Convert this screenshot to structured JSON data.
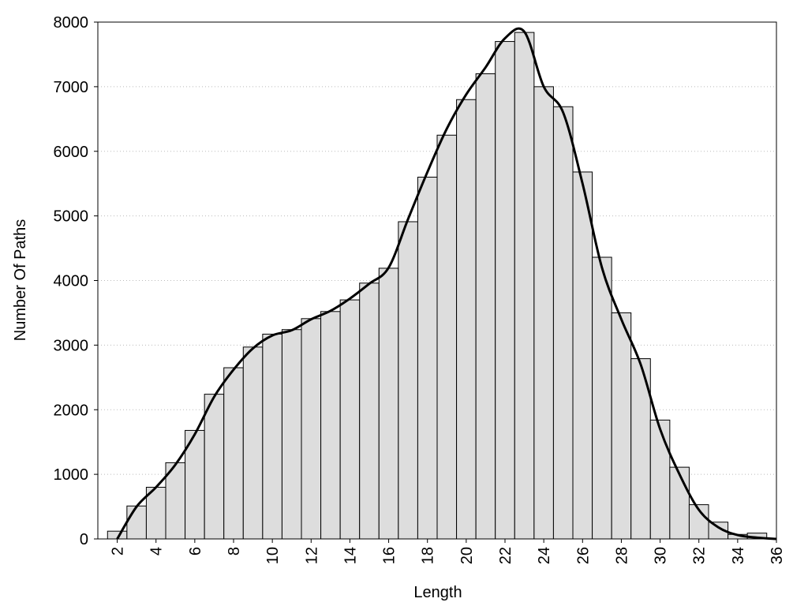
{
  "chart_data": {
    "type": "histogram",
    "xlabel": "Length",
    "ylabel": "Number Of Paths",
    "bins": [
      1.5,
      2.5,
      3.5,
      4.5,
      5.5,
      6.5,
      7.5,
      8.5,
      9.5,
      10.5,
      11.5,
      12.5,
      13.5,
      14.5,
      15.5,
      16.5,
      17.5,
      18.5,
      19.5,
      20.5,
      21.5,
      22.5,
      23.5,
      24.5,
      25.5,
      26.5,
      27.5,
      28.5,
      29.5,
      30.5,
      31.5,
      32.5,
      33.5,
      34.5,
      35.5
    ],
    "counts": [
      120,
      510,
      800,
      1180,
      1680,
      2240,
      2650,
      2970,
      3170,
      3240,
      3410,
      3520,
      3700,
      3960,
      4190,
      4910,
      5600,
      6250,
      6800,
      7200,
      7700,
      7840,
      7000,
      6690,
      5680,
      4360,
      3500,
      2790,
      1840,
      1110,
      530,
      260,
      70,
      90
    ],
    "color": "#dddddd",
    "line": {
      "color": "#000000",
      "x": [
        2,
        3,
        4,
        5,
        6,
        7,
        8,
        9,
        10,
        11,
        12,
        13,
        14,
        15,
        16,
        17,
        18,
        19,
        20,
        21,
        22,
        23,
        24,
        25,
        26,
        27,
        28,
        29,
        30,
        31,
        32,
        33,
        34,
        35,
        36
      ],
      "values": [
        0,
        500,
        800,
        1150,
        1620,
        2200,
        2620,
        2950,
        3150,
        3230,
        3400,
        3530,
        3720,
        3950,
        4200,
        4950,
        5680,
        6350,
        6880,
        7300,
        7750,
        7850,
        7000,
        6600,
        5500,
        4200,
        3400,
        2700,
        1700,
        1000,
        450,
        180,
        60,
        20,
        0
      ]
    },
    "xlim": [
      1,
      36
    ],
    "ylim": [
      0,
      8000
    ],
    "xticks": [
      2,
      4,
      6,
      8,
      10,
      12,
      14,
      16,
      18,
      20,
      22,
      24,
      26,
      28,
      30,
      32,
      34,
      36
    ],
    "yticks": [
      0,
      1000,
      2000,
      3000,
      4000,
      5000,
      6000,
      7000,
      8000
    ],
    "grid": true
  }
}
